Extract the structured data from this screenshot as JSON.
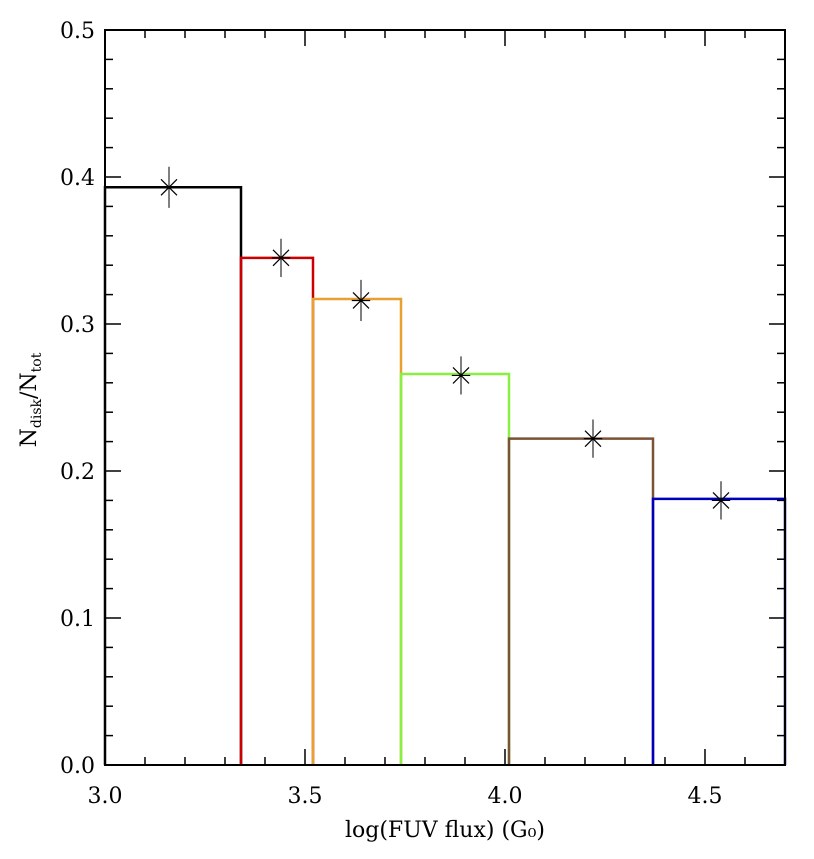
{
  "chart_data": {
    "type": "histogram-step",
    "title": "",
    "xlabel": "log(FUV flux) (G₀)",
    "ylabel": {
      "base1": "N",
      "sub1": "disk",
      "sep": "/",
      "base2": "N",
      "sub2": "tot"
    },
    "xlim": [
      3.0,
      4.7
    ],
    "ylim": [
      0.0,
      0.5
    ],
    "x_ticks": [
      3.0,
      3.5,
      4.0,
      4.5
    ],
    "x_tick_labels": [
      "3.0",
      "3.5",
      "4.0",
      "4.5"
    ],
    "y_ticks": [
      0.0,
      0.1,
      0.2,
      0.3,
      0.4,
      0.5
    ],
    "y_tick_labels": [
      "0.0",
      "0.1",
      "0.2",
      "0.3",
      "0.4",
      "0.5"
    ],
    "grid": false,
    "bins": [
      {
        "x0": 3.0,
        "x1": 3.34,
        "value": 0.393,
        "color": "#000000"
      },
      {
        "x0": 3.34,
        "x1": 3.52,
        "value": 0.345,
        "color": "#cc0000"
      },
      {
        "x0": 3.52,
        "x1": 3.74,
        "value": 0.317,
        "color": "#e8a030"
      },
      {
        "x0": 3.74,
        "x1": 4.01,
        "value": 0.266,
        "color": "#88f040"
      },
      {
        "x0": 4.01,
        "x1": 4.37,
        "value": 0.222,
        "color": "#7a5236"
      },
      {
        "x0": 4.37,
        "x1": 4.7,
        "value": 0.181,
        "color": "#0000bb"
      }
    ],
    "points": [
      {
        "x": 3.16,
        "y": 0.393,
        "err": 0.014
      },
      {
        "x": 3.44,
        "y": 0.345,
        "err": 0.013
      },
      {
        "x": 3.64,
        "y": 0.316,
        "err": 0.014
      },
      {
        "x": 3.89,
        "y": 0.265,
        "err": 0.013
      },
      {
        "x": 4.22,
        "y": 0.222,
        "err": 0.013
      },
      {
        "x": 4.54,
        "y": 0.18,
        "err": 0.013
      }
    ]
  }
}
